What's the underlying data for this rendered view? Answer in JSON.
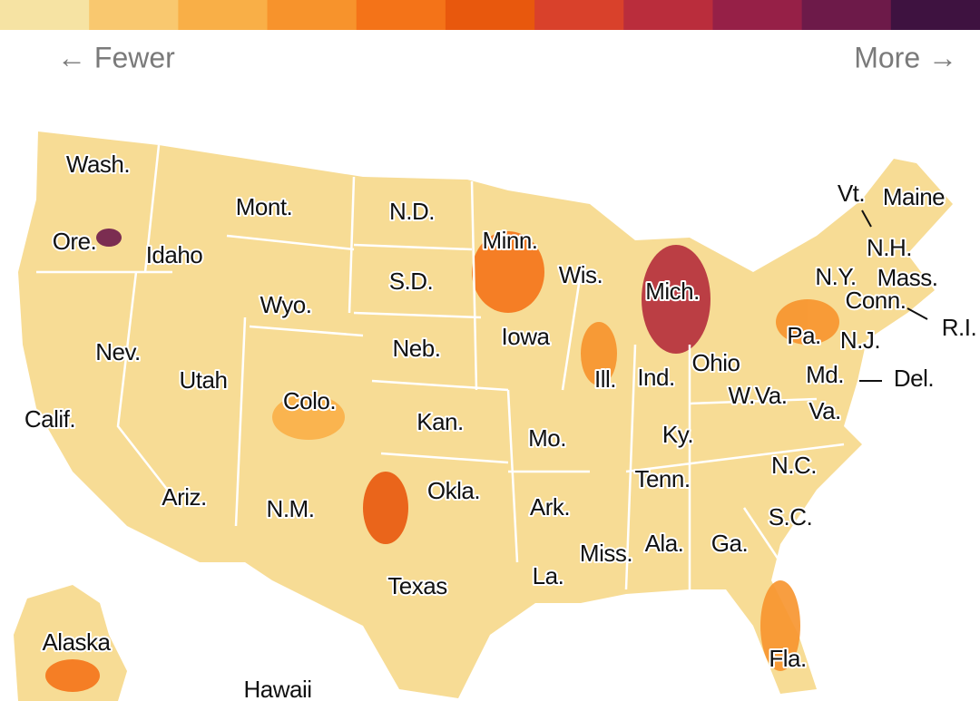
{
  "legend": {
    "low_label": "← Fewer",
    "high_label": "More →",
    "colors": [
      "#f6e3a3",
      "#f9c86f",
      "#f9af47",
      "#f7932c",
      "#f47318",
      "#e8580d",
      "#d9412b",
      "#ba2d3c",
      "#962047",
      "#6d1a49",
      "#3e1240"
    ]
  },
  "map": {
    "base_color": "#f7dc95",
    "labels": [
      "Wash.",
      "Ore.",
      "Idaho",
      "Mont.",
      "N.D.",
      "Minn.",
      "Wis.",
      "Mich.",
      "Vt.",
      "Maine",
      "N.H.",
      "N.Y.",
      "Mass.",
      "Conn.",
      "R.I.",
      "S.D.",
      "Wyo.",
      "Nev.",
      "Utah",
      "Colo.",
      "Neb.",
      "Iowa",
      "Ill.",
      "Ind.",
      "Ohio",
      "Pa.",
      "N.J.",
      "Md.",
      "Del.",
      "W.Va.",
      "Va.",
      "Calif.",
      "Kan.",
      "Mo.",
      "Ky.",
      "Tenn.",
      "N.C.",
      "Ariz.",
      "N.M.",
      "Okla.",
      "Ark.",
      "S.C.",
      "Miss.",
      "Ala.",
      "Ga.",
      "La.",
      "Texas",
      "Alaska",
      "Fla.",
      "Hawaii"
    ]
  }
}
